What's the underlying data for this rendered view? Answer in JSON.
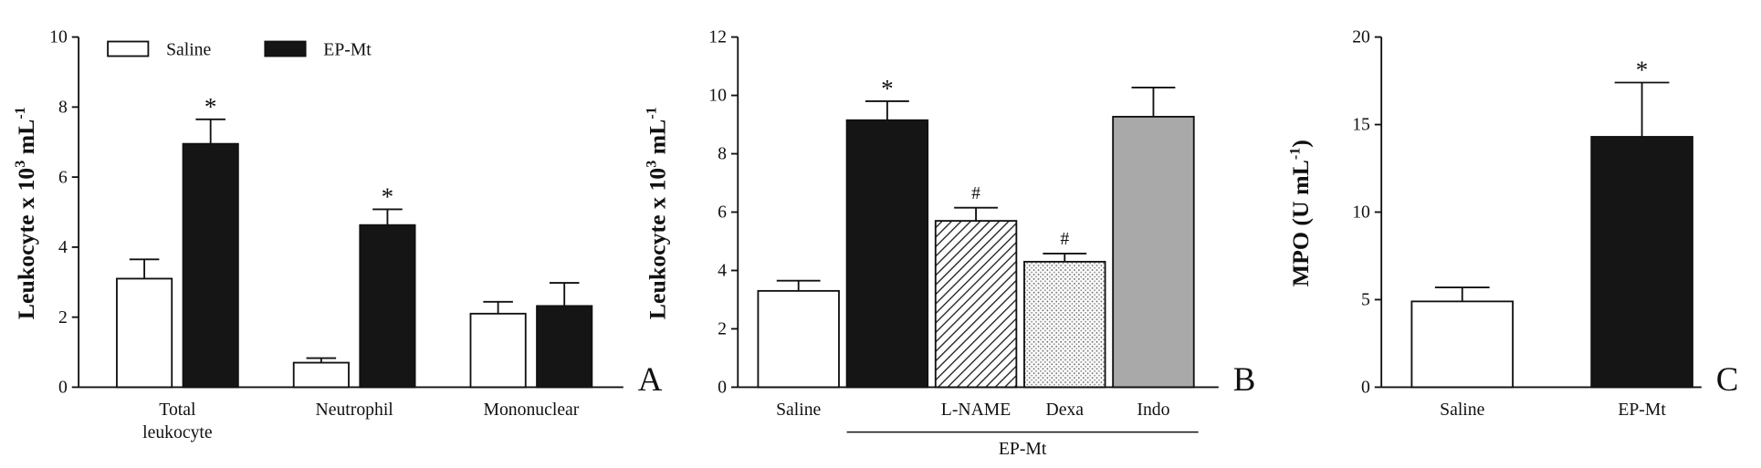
{
  "chart_data": [
    {
      "type": "bar",
      "panel": "A",
      "ylabel": [
        "Leukocyte x 10",
        "3",
        " mL",
        "-1"
      ],
      "categories": [
        "Total leukocyte",
        "Neutrophil",
        "Mononuclear"
      ],
      "series": [
        {
          "name": "Saline",
          "color": "#ffffff",
          "values": [
            3.1,
            0.7,
            2.1
          ],
          "errors": [
            0.55,
            0.13,
            0.34
          ],
          "marks": [
            null,
            null,
            null
          ]
        },
        {
          "name": "EP-Mt",
          "color": "#151515",
          "values": [
            6.95,
            4.63,
            2.32
          ],
          "errors": [
            0.7,
            0.45,
            0.66
          ],
          "marks": [
            "*",
            "*",
            null
          ]
        }
      ],
      "ylim": [
        0,
        10
      ],
      "yticks": [
        0,
        2,
        4,
        6,
        8,
        10
      ],
      "legend": "top-left"
    },
    {
      "type": "bar",
      "panel": "B",
      "ylabel": [
        "Leukocyte x 10",
        "3",
        " mL",
        "-1"
      ],
      "categories": [
        "Saline",
        null,
        "L-NAME",
        "Dexa",
        "Indo"
      ],
      "group_label": "EP-Mt",
      "series": [
        {
          "fills": [
            "#ffffff",
            "#151515",
            "diagonal-hatch",
            "dotted",
            "#a9a9a9"
          ],
          "values": [
            3.3,
            9.15,
            5.7,
            4.3,
            9.27
          ],
          "errors": [
            0.35,
            0.65,
            0.45,
            0.28,
            1.0
          ],
          "marks": [
            null,
            "*",
            "#",
            "#",
            null
          ]
        }
      ],
      "ylim": [
        0,
        12
      ],
      "yticks": [
        0,
        2,
        4,
        6,
        8,
        10,
        12
      ]
    },
    {
      "type": "bar",
      "panel": "C",
      "ylabel": [
        "MPO (U mL",
        "-1",
        ")"
      ],
      "categories": [
        "Saline",
        "EP-Mt"
      ],
      "series": [
        {
          "fills": [
            "#ffffff",
            "#151515"
          ],
          "values": [
            4.9,
            14.3
          ],
          "errors": [
            0.8,
            3.1
          ],
          "marks": [
            null,
            "*"
          ]
        }
      ],
      "ylim": [
        0,
        20
      ],
      "yticks": [
        0,
        5,
        10,
        15,
        20
      ]
    }
  ]
}
